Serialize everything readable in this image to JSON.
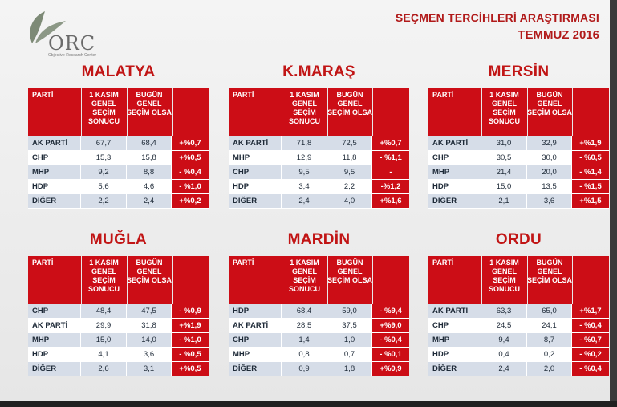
{
  "header": {
    "title": "SEÇMEN TERCİHLERİ ARAŞTIRMASI",
    "date": "TEMMUZ 2016"
  },
  "logo": {
    "text": "ORC",
    "subtitle": "Objective Research Center"
  },
  "columns": {
    "party": "PARTİ",
    "previous": "1 KASIM GENEL SEÇİM SONUCU",
    "current": "BUGÜN GENEL SEÇİM OLSA"
  },
  "colors": {
    "accent": "#cc0d16",
    "title_red": "#b11a1a",
    "row_alt": "#d6dde8"
  },
  "cities": [
    {
      "name": "MALATYA",
      "rows": [
        {
          "party": "AK PARTİ",
          "prev": "67,7",
          "now": "68,4",
          "diff": "+%0,7"
        },
        {
          "party": "CHP",
          "prev": "15,3",
          "now": "15,8",
          "diff": "+%0,5"
        },
        {
          "party": "MHP",
          "prev": "9,2",
          "now": "8,8",
          "diff": "- %0,4"
        },
        {
          "party": "HDP",
          "prev": "5,6",
          "now": "4,6",
          "diff": "- %1,0"
        },
        {
          "party": "DİĞER",
          "prev": "2,2",
          "now": "2,4",
          "diff": "+%0,2"
        }
      ]
    },
    {
      "name": "K.MARAŞ",
      "rows": [
        {
          "party": "AK PARTİ",
          "prev": "71,8",
          "now": "72,5",
          "diff": "+%0,7"
        },
        {
          "party": "MHP",
          "prev": "12,9",
          "now": "11,8",
          "diff": "- %1,1"
        },
        {
          "party": "CHP",
          "prev": "9,5",
          "now": "9,5",
          "diff": "-"
        },
        {
          "party": "HDP",
          "prev": "3,4",
          "now": "2,2",
          "diff": "-%1,2"
        },
        {
          "party": "DİĞER",
          "prev": "2,4",
          "now": "4,0",
          "diff": "+%1,6"
        }
      ]
    },
    {
      "name": "MERSİN",
      "rows": [
        {
          "party": "AK PARTİ",
          "prev": "31,0",
          "now": "32,9",
          "diff": "+%1,9"
        },
        {
          "party": "CHP",
          "prev": "30,5",
          "now": "30,0",
          "diff": "- %0,5"
        },
        {
          "party": "MHP",
          "prev": "21,4",
          "now": "20,0",
          "diff": "- %1,4"
        },
        {
          "party": "HDP",
          "prev": "15,0",
          "now": "13,5",
          "diff": "- %1,5"
        },
        {
          "party": "DİĞER",
          "prev": "2,1",
          "now": "3,6",
          "diff": "+%1,5"
        }
      ]
    },
    {
      "name": "MUĞLA",
      "rows": [
        {
          "party": "CHP",
          "prev": "48,4",
          "now": "47,5",
          "diff": "- %0,9"
        },
        {
          "party": "AK PARTİ",
          "prev": "29,9",
          "now": "31,8",
          "diff": "+%1,9"
        },
        {
          "party": "MHP",
          "prev": "15,0",
          "now": "14,0",
          "diff": "- %1,0"
        },
        {
          "party": "HDP",
          "prev": "4,1",
          "now": "3,6",
          "diff": "- %0,5"
        },
        {
          "party": "DİĞER",
          "prev": "2,6",
          "now": "3,1",
          "diff": "+%0,5"
        }
      ]
    },
    {
      "name": "MARDİN",
      "rows": [
        {
          "party": "HDP",
          "prev": "68,4",
          "now": "59,0",
          "diff": "- %9,4"
        },
        {
          "party": "AK PARTİ",
          "prev": "28,5",
          "now": "37,5",
          "diff": "+%9,0"
        },
        {
          "party": "CHP",
          "prev": "1,4",
          "now": "1,0",
          "diff": "- %0,4"
        },
        {
          "party": "MHP",
          "prev": "0,8",
          "now": "0,7",
          "diff": "- %0,1"
        },
        {
          "party": "DİĞER",
          "prev": "0,9",
          "now": "1,8",
          "diff": "+%0,9"
        }
      ]
    },
    {
      "name": "ORDU",
      "rows": [
        {
          "party": "AK PARTİ",
          "prev": "63,3",
          "now": "65,0",
          "diff": "+%1,7"
        },
        {
          "party": "CHP",
          "prev": "24,5",
          "now": "24,1",
          "diff": "- %0,4"
        },
        {
          "party": "MHP",
          "prev": "9,4",
          "now": "8,7",
          "diff": "- %0,7"
        },
        {
          "party": "HDP",
          "prev": "0,4",
          "now": "0,2",
          "diff": "- %0,2"
        },
        {
          "party": "DİĞER",
          "prev": "2,4",
          "now": "2,0",
          "diff": "- %0,4"
        }
      ]
    }
  ]
}
